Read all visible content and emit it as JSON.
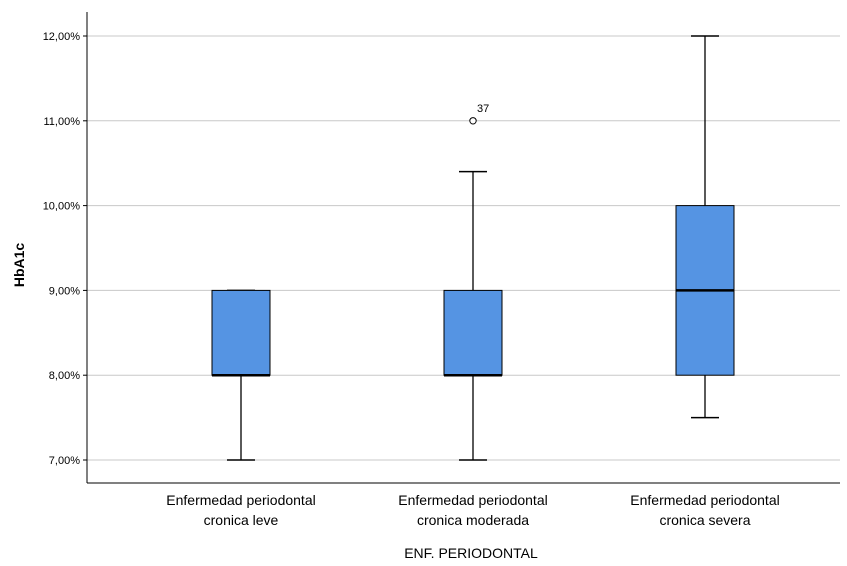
{
  "chart_data": {
    "type": "boxplot",
    "ylabel": "HbA1c",
    "xlabel": "ENF. PERIODONTAL",
    "ylim": [
      6.75,
      12.3
    ],
    "yticks": [
      7,
      8,
      9,
      10,
      11,
      12
    ],
    "ytick_labels": [
      "7,00%",
      "8,00%",
      "9,00%",
      "10,00%",
      "11,00%",
      "12,00%"
    ],
    "grid": true,
    "box_color": "#5594e3",
    "categories": [
      {
        "line1": "Enfermedad periodontal",
        "line2": "cronica leve"
      },
      {
        "line1": "Enfermedad periodontal",
        "line2": "cronica moderada"
      },
      {
        "line1": "Enfermedad periodontal",
        "line2": "cronica severa"
      }
    ],
    "boxes": [
      {
        "min": 7.0,
        "q1": 8.0,
        "median": 8.0,
        "q3": 9.0,
        "max": 9.0,
        "outliers": []
      },
      {
        "min": 7.0,
        "q1": 8.0,
        "median": 8.0,
        "q3": 9.0,
        "max": 10.4,
        "outliers": [
          {
            "value": 11.0,
            "label": "37"
          }
        ]
      },
      {
        "min": 7.5,
        "q1": 8.0,
        "median": 9.0,
        "q3": 10.0,
        "max": 12.0,
        "outliers": []
      }
    ]
  }
}
